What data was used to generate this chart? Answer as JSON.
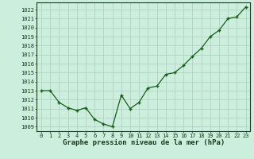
{
  "x": [
    0,
    1,
    2,
    3,
    4,
    5,
    6,
    7,
    8,
    9,
    10,
    11,
    12,
    13,
    14,
    15,
    16,
    17,
    18,
    19,
    20,
    21,
    22,
    23
  ],
  "y": [
    1013.0,
    1013.0,
    1011.7,
    1011.1,
    1010.8,
    1011.1,
    1009.8,
    1009.3,
    1009.0,
    1012.5,
    1011.0,
    1011.7,
    1013.3,
    1013.5,
    1014.8,
    1015.0,
    1015.8,
    1016.8,
    1017.7,
    1019.0,
    1019.7,
    1021.0,
    1021.2,
    1022.3
  ],
  "line_color": "#1a5c1a",
  "marker_color": "#1a5c1a",
  "bg_color": "#cceedd",
  "grid_color": "#b0ccc0",
  "xlabel": "Graphe pression niveau de la mer (hPa)",
  "ylim_min": 1008.5,
  "ylim_max": 1022.8,
  "yticks": [
    1009,
    1010,
    1011,
    1012,
    1013,
    1014,
    1015,
    1016,
    1017,
    1018,
    1019,
    1020,
    1021,
    1022
  ],
  "xticks": [
    0,
    1,
    2,
    3,
    4,
    5,
    6,
    7,
    8,
    9,
    10,
    11,
    12,
    13,
    14,
    15,
    16,
    17,
    18,
    19,
    20,
    21,
    22,
    23
  ],
  "xlabel_fontsize": 6.5,
  "tick_fontsize": 5.0,
  "line_width": 0.9,
  "marker_size": 2.2,
  "marker_style": "+"
}
